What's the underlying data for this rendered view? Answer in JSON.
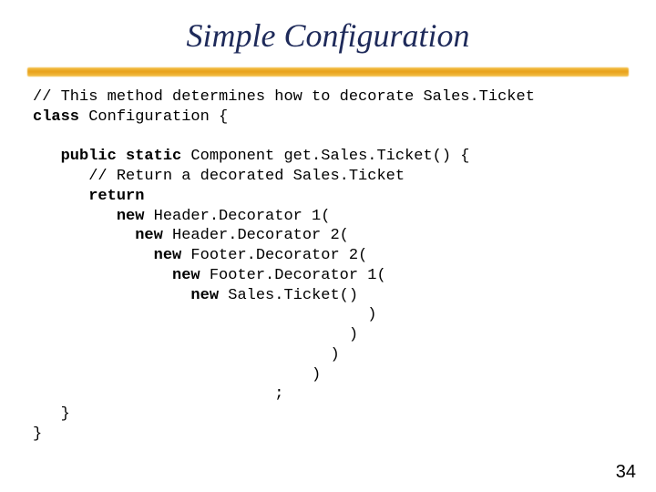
{
  "title": "Simple Configuration",
  "colors": {
    "title_color": "#1e2a5a",
    "underline_gradient_top": "#f4c24a",
    "underline_gradient_mid": "#e8a11a",
    "background": "#ffffff",
    "code_color": "#000000",
    "page_num_color": "#000000"
  },
  "typography": {
    "title_fontsize": 36,
    "title_style": "italic",
    "title_family": "Times New Roman",
    "code_family": "Courier New",
    "code_fontsize": 17,
    "page_num_family": "Arial",
    "page_num_fontsize": 20
  },
  "code": {
    "c0": "// This method determines how to decorate Sales.Ticket",
    "c1a": "class",
    "c1b": " Configuration {",
    "blank1": "",
    "c2a": "   public static",
    "c2b": " Component get.Sales.Ticket() {",
    "c3": "      // Return a decorated Sales.Ticket",
    "c4a": "      return",
    "c5a": "         new",
    "c5b": " Header.Decorator 1(",
    "c6a": "           new",
    "c6b": " Header.Decorator 2(",
    "c7a": "             new",
    "c7b": " Footer.Decorator 2(",
    "c8a": "               new",
    "c8b": " Footer.Decorator 1(",
    "c9a": "                 new",
    "c9b": " Sales.Ticket()",
    "c10": "                                    )",
    "c11": "                                  )",
    "c12": "                                )",
    "c13": "                              )",
    "c14": "                          ;",
    "c15": "   }",
    "c16": "}"
  },
  "page_number": "34"
}
